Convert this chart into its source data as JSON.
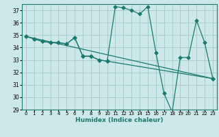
{
  "title": "",
  "xlabel": "Humidex (Indice chaleur)",
  "bg_color": "#cce8e8",
  "grid_color": "#aacccc",
  "line_color": "#1a7a6e",
  "xlim": [
    -0.5,
    23.5
  ],
  "ylim": [
    29,
    37.5
  ],
  "yticks": [
    29,
    30,
    31,
    32,
    33,
    34,
    35,
    36,
    37
  ],
  "xticks": [
    0,
    1,
    2,
    3,
    4,
    5,
    6,
    7,
    8,
    9,
    10,
    11,
    12,
    13,
    14,
    15,
    16,
    17,
    18,
    19,
    20,
    21,
    22,
    23
  ],
  "series1_x": [
    0,
    1,
    2,
    3,
    4,
    5,
    6,
    7,
    8,
    9,
    10,
    11,
    12,
    13,
    14,
    15,
    16,
    17,
    18,
    19,
    20,
    21,
    22,
    23
  ],
  "series1_y": [
    34.9,
    34.7,
    34.5,
    34.4,
    34.4,
    34.3,
    34.8,
    33.3,
    33.3,
    33.0,
    32.9,
    37.3,
    37.2,
    37.0,
    36.7,
    37.3,
    33.6,
    30.3,
    28.8,
    33.2,
    33.2,
    36.2,
    34.4,
    31.5
  ],
  "series2_x": [
    0,
    1,
    2,
    3,
    4,
    5,
    6,
    7,
    8,
    9,
    10,
    23
  ],
  "series2_y": [
    34.9,
    34.7,
    34.5,
    34.4,
    34.4,
    34.3,
    34.8,
    33.3,
    33.3,
    33.0,
    32.9,
    31.5
  ],
  "trend_x": [
    0,
    23
  ],
  "trend_y": [
    34.9,
    31.5
  ]
}
